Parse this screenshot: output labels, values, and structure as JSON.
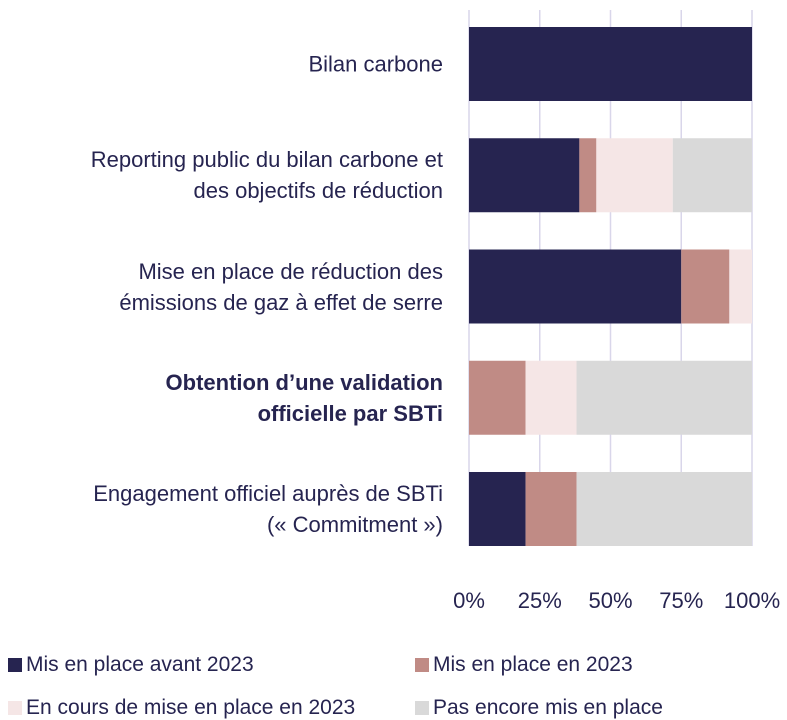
{
  "chart_data": {
    "type": "stacked_bar_horizontal",
    "categories": [
      "Bilan carbone",
      "Reporting public du bilan carbone et\ndes objectifs de réduction",
      "Mise en place de réduction des\némissions de gaz à effet de serre",
      "Obtention d’une validation\nofficielle par SBTi",
      "Engagement officiel auprès de SBTi\n(« Commitment »)"
    ],
    "series": [
      {
        "name": "Mis en place avant 2023",
        "color": "#262450",
        "values": [
          100,
          39,
          75,
          0,
          20
        ]
      },
      {
        "name": "Mis en place en 2023",
        "color": "#c08b85",
        "values": [
          0,
          6,
          17,
          20,
          18
        ]
      },
      {
        "name": "En cours de mise en place en 2023",
        "color": "#f5e6e6",
        "values": [
          0,
          27,
          8,
          18,
          0
        ]
      },
      {
        "name": "Pas encore mis en place",
        "color": "#d9d9d9",
        "values": [
          0,
          28,
          0,
          62,
          62
        ]
      }
    ],
    "xlim": [
      0,
      100
    ],
    "xticks": [
      {
        "value": 0,
        "label": "0%"
      },
      {
        "value": 25,
        "label": "25%"
      },
      {
        "value": 50,
        "label": "50%"
      },
      {
        "value": 75,
        "label": "75%"
      },
      {
        "value": 100,
        "label": "100%"
      }
    ],
    "grid": true
  }
}
